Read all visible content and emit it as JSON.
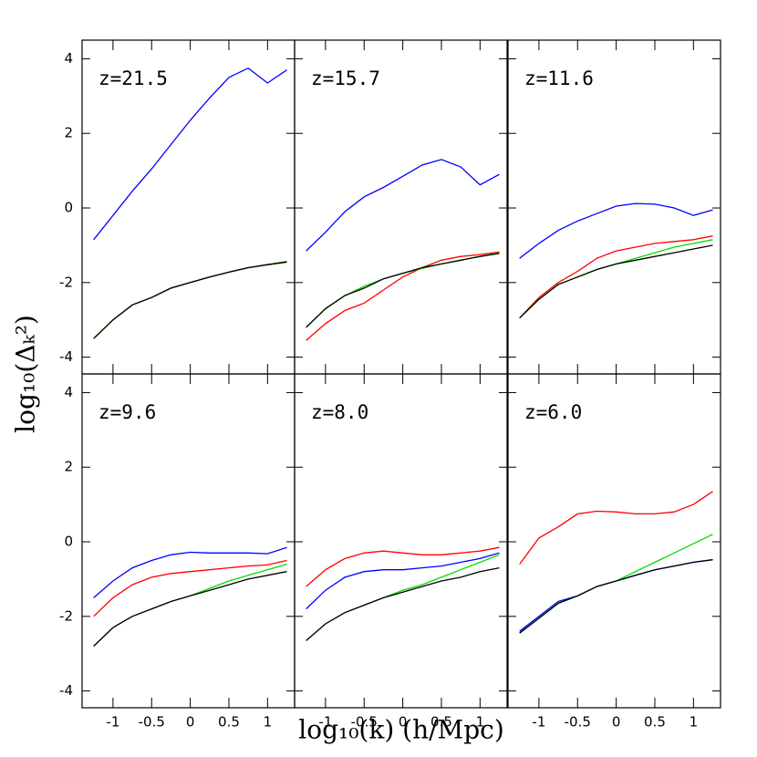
{
  "xlabel": "log₁₀(k) (h/Mpc)",
  "ylabel": "log₁₀(Δₖ²)",
  "chart_data": [
    {
      "type": "line",
      "annotation": "z=21.5",
      "xlim": [
        -1.4,
        1.35
      ],
      "ylim": [
        -4.45,
        4.5
      ],
      "xticks": [
        -1,
        -0.5,
        0,
        0.5,
        1
      ],
      "yticks": [
        -4,
        -2,
        0,
        2,
        4
      ],
      "x": [
        -1.25,
        -1,
        -0.75,
        -0.5,
        -0.25,
        0,
        0.25,
        0.5,
        0.75,
        1,
        1.25
      ],
      "series": [
        {
          "color": "#0000ff",
          "values": [
            -0.85,
            -0.2,
            0.45,
            1.05,
            1.7,
            2.35,
            2.95,
            3.5,
            3.75,
            3.35,
            3.7
          ]
        },
        {
          "color": "#ff0000",
          "values": [
            -3.5,
            -3.0,
            -2.6,
            -2.4,
            -2.15,
            -2.0,
            -1.85,
            -1.72,
            -1.6,
            -1.52,
            -1.45
          ]
        },
        {
          "color": "#00dd00",
          "values": [
            -3.5,
            -3.0,
            -2.6,
            -2.4,
            -2.15,
            -2.0,
            -1.85,
            -1.72,
            -1.6,
            -1.52,
            -1.43
          ]
        },
        {
          "color": "#000000",
          "values": [
            -3.5,
            -3.0,
            -2.6,
            -2.4,
            -2.15,
            -2.0,
            -1.85,
            -1.72,
            -1.6,
            -1.52,
            -1.45
          ]
        }
      ]
    },
    {
      "type": "line",
      "annotation": "z=15.7",
      "xlim": [
        -1.4,
        1.35
      ],
      "ylim": [
        -4.45,
        4.5
      ],
      "xticks": [
        -1,
        -0.5,
        0,
        0.5,
        1
      ],
      "yticks": [
        -4,
        -2,
        0,
        2,
        4
      ],
      "x": [
        -1.25,
        -1,
        -0.75,
        -0.5,
        -0.25,
        0,
        0.25,
        0.5,
        0.75,
        1,
        1.25
      ],
      "series": [
        {
          "color": "#0000ff",
          "values": [
            -1.15,
            -0.65,
            -0.1,
            0.3,
            0.55,
            0.85,
            1.15,
            1.3,
            1.1,
            0.62,
            0.9
          ]
        },
        {
          "color": "#ff0000",
          "values": [
            -3.55,
            -3.1,
            -2.75,
            -2.55,
            -2.2,
            -1.85,
            -1.6,
            -1.4,
            -1.3,
            -1.25,
            -1.18
          ]
        },
        {
          "color": "#00dd00",
          "values": [
            -3.2,
            -2.7,
            -2.35,
            -2.1,
            -1.9,
            -1.75,
            -1.62,
            -1.5,
            -1.4,
            -1.3,
            -1.2
          ]
        },
        {
          "color": "#000000",
          "values": [
            -3.2,
            -2.7,
            -2.35,
            -2.15,
            -1.9,
            -1.75,
            -1.6,
            -1.5,
            -1.4,
            -1.3,
            -1.22
          ]
        }
      ]
    },
    {
      "type": "line",
      "annotation": "z=11.6",
      "xlim": [
        -1.4,
        1.35
      ],
      "ylim": [
        -4.45,
        4.5
      ],
      "xticks": [
        -1,
        -0.5,
        0,
        0.5,
        1
      ],
      "yticks": [
        -4,
        -2,
        0,
        2,
        4
      ],
      "x": [
        -1.25,
        -1,
        -0.75,
        -0.5,
        -0.25,
        0,
        0.25,
        0.5,
        0.75,
        1,
        1.25
      ],
      "series": [
        {
          "color": "#0000ff",
          "values": [
            -1.35,
            -0.95,
            -0.6,
            -0.35,
            -0.15,
            0.05,
            0.12,
            0.1,
            0.0,
            -0.2,
            -0.05
          ]
        },
        {
          "color": "#ff0000",
          "values": [
            -2.95,
            -2.4,
            -2.0,
            -1.7,
            -1.35,
            -1.15,
            -1.05,
            -0.95,
            -0.9,
            -0.85,
            -0.75
          ]
        },
        {
          "color": "#00dd00",
          "values": [
            -2.95,
            -2.45,
            -2.05,
            -1.85,
            -1.65,
            -1.5,
            -1.35,
            -1.2,
            -1.05,
            -0.95,
            -0.85
          ]
        },
        {
          "color": "#000000",
          "values": [
            -2.95,
            -2.45,
            -2.05,
            -1.85,
            -1.65,
            -1.5,
            -1.4,
            -1.3,
            -1.2,
            -1.1,
            -1.0
          ]
        }
      ]
    },
    {
      "type": "line",
      "annotation": "z=9.6",
      "xlim": [
        -1.4,
        1.35
      ],
      "ylim": [
        -4.45,
        4.5
      ],
      "xticks": [
        -1,
        -0.5,
        0,
        0.5,
        1
      ],
      "yticks": [
        -4,
        -2,
        0,
        2,
        4
      ],
      "x": [
        -1.25,
        -1,
        -0.75,
        -0.5,
        -0.25,
        0,
        0.25,
        0.5,
        0.75,
        1,
        1.25
      ],
      "series": [
        {
          "color": "#0000ff",
          "values": [
            -1.5,
            -1.05,
            -0.7,
            -0.5,
            -0.35,
            -0.28,
            -0.3,
            -0.3,
            -0.3,
            -0.32,
            -0.15
          ]
        },
        {
          "color": "#ff0000",
          "values": [
            -2.0,
            -1.5,
            -1.15,
            -0.95,
            -0.85,
            -0.8,
            -0.75,
            -0.7,
            -0.65,
            -0.62,
            -0.5
          ]
        },
        {
          "color": "#00dd00",
          "values": [
            -2.8,
            -2.3,
            -2.0,
            -1.8,
            -1.6,
            -1.45,
            -1.25,
            -1.05,
            -0.9,
            -0.75,
            -0.6
          ]
        },
        {
          "color": "#000000",
          "values": [
            -2.8,
            -2.3,
            -2.0,
            -1.8,
            -1.6,
            -1.45,
            -1.3,
            -1.15,
            -1.0,
            -0.9,
            -0.8
          ]
        }
      ]
    },
    {
      "type": "line",
      "annotation": "z=8.0",
      "xlim": [
        -1.4,
        1.35
      ],
      "ylim": [
        -4.45,
        4.5
      ],
      "xticks": [
        -1,
        -0.5,
        0,
        0.5,
        1
      ],
      "yticks": [
        -4,
        -2,
        0,
        2,
        4
      ],
      "x": [
        -1.25,
        -1,
        -0.75,
        -0.5,
        -0.25,
        0,
        0.25,
        0.5,
        0.75,
        1,
        1.25
      ],
      "series": [
        {
          "color": "#0000ff",
          "values": [
            -1.8,
            -1.3,
            -0.95,
            -0.8,
            -0.75,
            -0.75,
            -0.7,
            -0.65,
            -0.55,
            -0.45,
            -0.3
          ]
        },
        {
          "color": "#ff0000",
          "values": [
            -1.2,
            -0.75,
            -0.45,
            -0.3,
            -0.25,
            -0.3,
            -0.35,
            -0.35,
            -0.3,
            -0.25,
            -0.15
          ]
        },
        {
          "color": "#00dd00",
          "values": [
            -2.65,
            -2.2,
            -1.9,
            -1.7,
            -1.5,
            -1.3,
            -1.15,
            -0.95,
            -0.75,
            -0.55,
            -0.35
          ]
        },
        {
          "color": "#000000",
          "values": [
            -2.65,
            -2.2,
            -1.9,
            -1.7,
            -1.5,
            -1.35,
            -1.2,
            -1.05,
            -0.95,
            -0.8,
            -0.7
          ]
        }
      ]
    },
    {
      "type": "line",
      "annotation": "z=6.0",
      "xlim": [
        -1.4,
        1.35
      ],
      "ylim": [
        -4.45,
        4.5
      ],
      "xticks": [
        -1,
        -0.5,
        0,
        0.5,
        1
      ],
      "yticks": [
        -4,
        -2,
        0,
        2,
        4
      ],
      "x": [
        -1.25,
        -1,
        -0.75,
        -0.5,
        -0.25,
        0,
        0.25,
        0.5,
        0.75,
        1,
        1.25
      ],
      "series": [
        {
          "color": "#0000ff",
          "values": [
            -2.4,
            -2.0,
            -1.6,
            -1.45,
            -1.2,
            -1.05,
            -0.9,
            -0.75,
            -0.65,
            -0.55,
            -0.48
          ]
        },
        {
          "color": "#ff0000",
          "values": [
            -0.6,
            0.1,
            0.4,
            0.75,
            0.82,
            0.8,
            0.75,
            0.75,
            0.8,
            1.0,
            1.35
          ]
        },
        {
          "color": "#00dd00",
          "values": [
            -2.45,
            -2.05,
            -1.65,
            -1.45,
            -1.2,
            -1.05,
            -0.8,
            -0.55,
            -0.3,
            -0.05,
            0.2
          ]
        },
        {
          "color": "#000000",
          "values": [
            -2.45,
            -2.05,
            -1.65,
            -1.45,
            -1.2,
            -1.05,
            -0.9,
            -0.75,
            -0.65,
            -0.55,
            -0.48
          ]
        }
      ]
    }
  ]
}
